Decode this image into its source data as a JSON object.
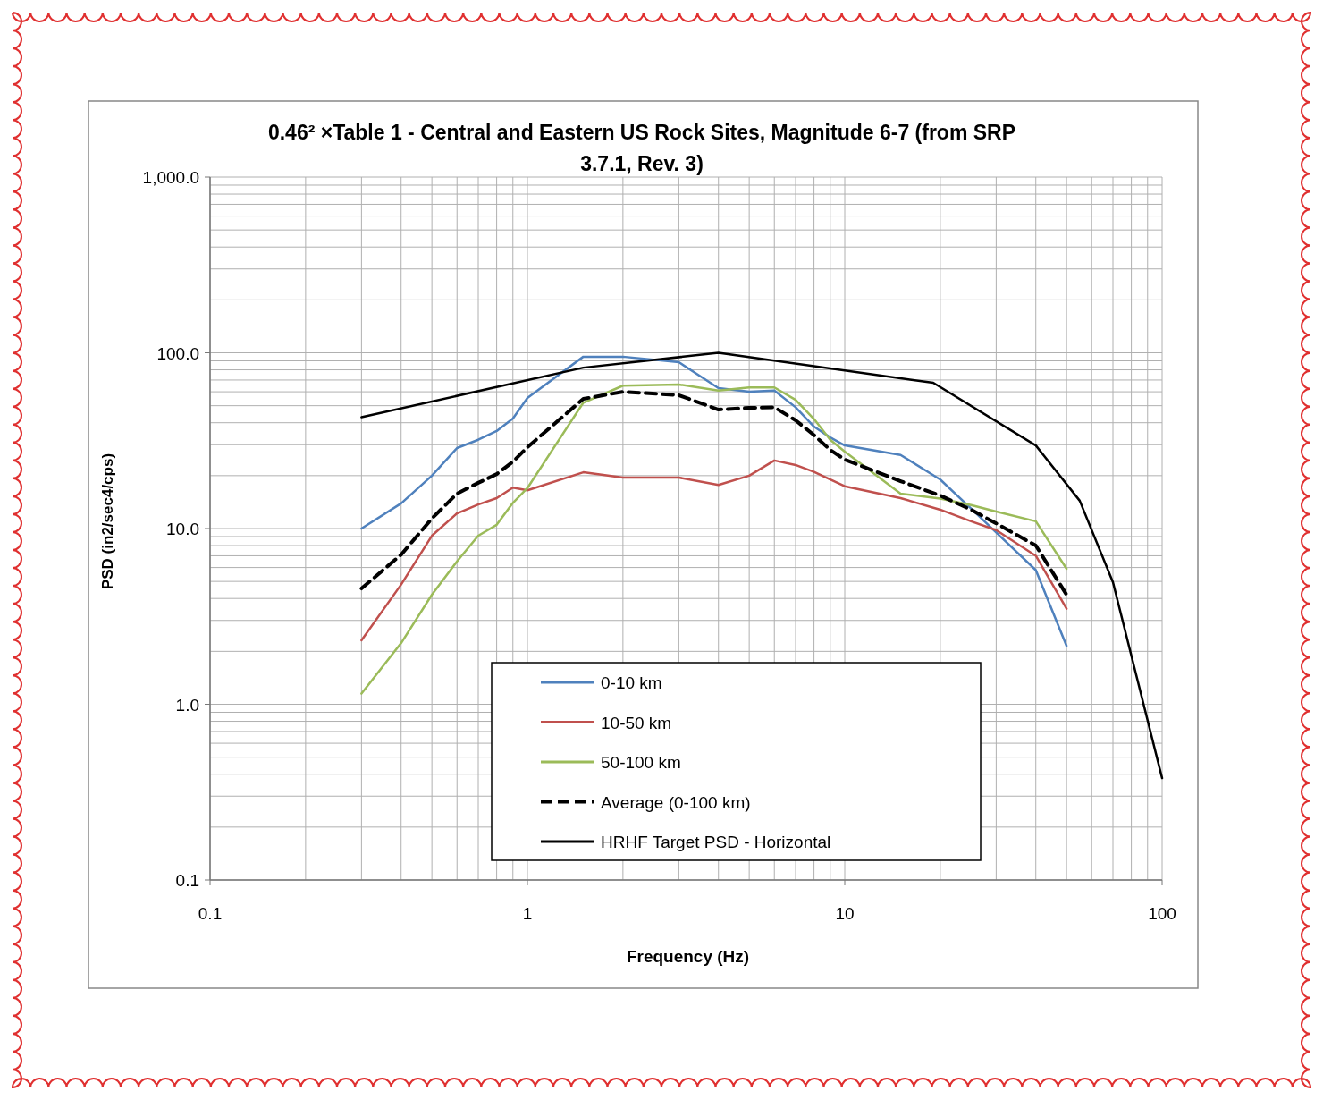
{
  "chart_data": {
    "type": "line",
    "title": "0.46² ×Table 1 - Central and Eastern US Rock Sites, Magnitude 6-7 (from SRP 3.7.1, Rev. 3)",
    "xlabel": "Frequency (Hz)",
    "ylabel": "PSD (in2/sec4/cps)",
    "log": "xy",
    "grid": true,
    "legend": "bottom",
    "marker": "none",
    "xlim": [
      0.1,
      100
    ],
    "xticks": [
      0.1,
      1,
      10,
      100
    ],
    "ylim": [
      0.1,
      1000
    ],
    "yticks": [
      {
        "value": 0.1,
        "label": "0.1"
      },
      {
        "value": 1,
        "label": "1.0"
      },
      {
        "value": 10,
        "label": "10.0"
      },
      {
        "value": 100,
        "label": "100.0"
      },
      {
        "value": 1000,
        "label": "1,000.0"
      }
    ],
    "x": [
      0.3,
      0.4,
      0.5,
      0.6,
      0.7,
      0.8,
      0.9,
      1,
      1.5,
      2,
      3,
      4,
      5,
      6,
      7,
      8,
      9,
      10,
      15,
      20,
      25,
      30,
      40,
      50
    ],
    "series": [
      {
        "name": "0-10 km",
        "color": "#4f81bd",
        "line_style": "solid",
        "values": [
          10,
          13.9,
          20,
          28.7,
          32,
          35.9,
          42.3,
          55.3,
          95,
          95,
          88.4,
          63,
          60,
          61,
          49,
          38,
          33,
          29.7,
          26.2,
          19,
          13,
          9.5,
          5.8,
          2.15
        ]
      },
      {
        "name": "10-50 km",
        "color": "#c0504d",
        "line_style": "solid",
        "values": [
          2.31,
          4.8,
          9.1,
          12.2,
          13.7,
          14.9,
          17.1,
          16.5,
          20.9,
          19.5,
          19.5,
          17.7,
          20,
          24.4,
          23,
          21,
          19,
          17.4,
          14.9,
          12.8,
          11,
          9.8,
          7,
          3.5
        ]
      },
      {
        "name": "50-100 km",
        "color": "#9bbb59",
        "line_style": "solid",
        "values": [
          1.15,
          2.23,
          4.2,
          6.5,
          9.1,
          10.5,
          14,
          17,
          52,
          65,
          66,
          61,
          63.5,
          63.5,
          54,
          42,
          32,
          27.4,
          15.8,
          14.8,
          13.6,
          12.5,
          11,
          5.9
        ]
      },
      {
        "name": "Average (0-100 km)",
        "color": "#000000",
        "line_style": "dashed",
        "values": [
          4.56,
          7.1,
          11.4,
          15.8,
          18.2,
          20.4,
          24,
          29,
          54.7,
          60,
          57.4,
          47.5,
          48.6,
          49,
          41.3,
          34,
          28,
          24.7,
          18.6,
          15.4,
          12.8,
          10.7,
          8,
          4.2
        ]
      },
      {
        "name": "HRHF Target PSD - Horizontal",
        "color": "#000000",
        "line_style": "solid",
        "x": [
          0.3,
          1.5,
          4,
          19,
          40,
          55,
          70,
          100
        ],
        "values": [
          43,
          82.3,
          100,
          67.5,
          29.7,
          14.4,
          4.95,
          0.38
        ]
      }
    ]
  }
}
